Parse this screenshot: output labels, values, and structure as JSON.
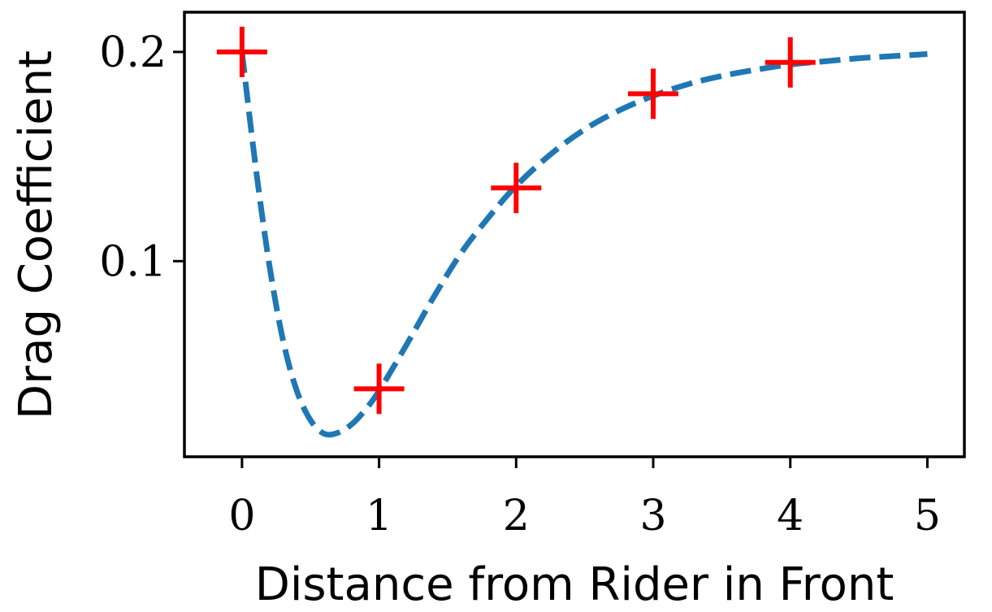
{
  "chart_data": {
    "type": "scatter",
    "title": "",
    "xlabel": "Distance from Rider in Front",
    "ylabel": "Drag Coefficient",
    "xlim": [
      -0.42,
      5.27
    ],
    "ylim": [
      0.0065,
      0.219
    ],
    "x_ticks": [
      0,
      1,
      2,
      3,
      4,
      5
    ],
    "x_tick_labels": [
      "0",
      "1",
      "2",
      "3",
      "4",
      "5"
    ],
    "y_ticks": [
      0.1,
      0.2
    ],
    "y_tick_labels": [
      "0.1",
      "0.2"
    ],
    "grid": false,
    "legend": "none",
    "series": [
      {
        "kind": "markers",
        "marker": "plus",
        "color": "#ff0000",
        "x": [
          0,
          1,
          2,
          3,
          4
        ],
        "y": [
          0.2,
          0.039,
          0.135,
          0.18,
          0.195
        ]
      },
      {
        "kind": "line",
        "style": "dashed",
        "color": "#1f77b4",
        "x": [
          0,
          0.1,
          0.2,
          0.3,
          0.4,
          0.5,
          0.6,
          0.7,
          0.8,
          0.9,
          1.0,
          1.2,
          1.4,
          1.6,
          1.8,
          2.0,
          2.25,
          2.5,
          2.75,
          3.0,
          3.25,
          3.5,
          3.75,
          4.0,
          4.25,
          4.5,
          4.75,
          5.0
        ],
        "y": [
          0.2,
          0.145,
          0.098,
          0.062,
          0.038,
          0.024,
          0.0175,
          0.018,
          0.022,
          0.029,
          0.038,
          0.06,
          0.083,
          0.104,
          0.121,
          0.136,
          0.151,
          0.163,
          0.172,
          0.179,
          0.1845,
          0.1885,
          0.1915,
          0.194,
          0.1955,
          0.197,
          0.198,
          0.199
        ]
      }
    ]
  }
}
